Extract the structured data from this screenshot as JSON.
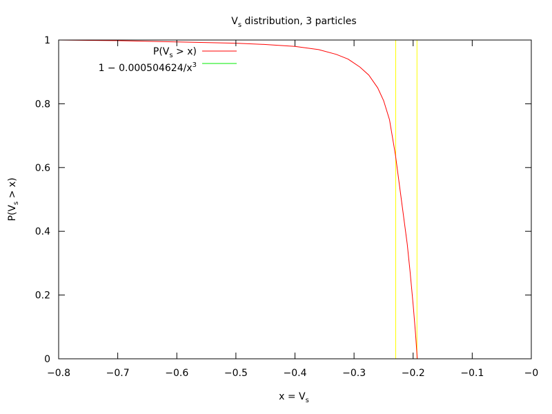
{
  "chart_data": {
    "type": "line",
    "title": {
      "main": "V",
      "sub": "s",
      "rest": " distribution, 3 particles"
    },
    "xlabel": {
      "main": "x = V",
      "sub": "s"
    },
    "ylabel": {
      "main": "P(V",
      "sub": "s",
      "rest": " > x)"
    },
    "xlim": [
      -0.8,
      0
    ],
    "ylim": [
      0,
      1
    ],
    "x_ticks": [
      -0.8,
      -0.7,
      -0.6,
      -0.5,
      -0.4,
      -0.3,
      -0.2,
      -0.1,
      0
    ],
    "x_tick_labels": [
      "−0.8",
      "−0.7",
      "−0.6",
      "−0.5",
      "−0.4",
      "−0.3",
      "−0.2",
      "−0.1",
      "−0"
    ],
    "y_ticks": [
      0,
      0.2,
      0.4,
      0.6,
      0.8,
      1
    ],
    "y_tick_labels": [
      "0",
      "0.2",
      "0.4",
      "0.6",
      "0.8",
      "1"
    ],
    "grid": false,
    "legend_position": "top-left",
    "series": [
      {
        "name": "P(Vs > x)",
        "legend": {
          "main": "P(V",
          "sub": "s",
          "rest": " > x)"
        },
        "color": "#ff0000",
        "x": [
          -0.8,
          -0.7,
          -0.6,
          -0.5,
          -0.45,
          -0.4,
          -0.36,
          -0.33,
          -0.31,
          -0.29,
          -0.275,
          -0.26,
          -0.25,
          -0.24,
          -0.23,
          -0.22,
          -0.21,
          -0.205,
          -0.2,
          -0.196,
          -0.193
        ],
        "y": [
          1.0,
          0.998,
          0.994,
          0.99,
          0.986,
          0.98,
          0.97,
          0.955,
          0.94,
          0.915,
          0.89,
          0.85,
          0.81,
          0.75,
          0.64,
          0.5,
          0.36,
          0.27,
          0.17,
          0.08,
          0.0
        ]
      },
      {
        "name": "1 − 0.000504624/x3",
        "legend": {
          "main": "1 − 0.000504624/x",
          "sup": "3"
        },
        "color": "#00ee00",
        "formula": {
          "a": 0.000504624,
          "power": 3
        },
        "x_range": [
          -0.8,
          -0.07961
        ]
      }
    ],
    "vertical_lines": [
      {
        "x": -0.2295,
        "color": "#ffff00"
      },
      {
        "x": -0.1935,
        "color": "#ffff00"
      }
    ]
  }
}
